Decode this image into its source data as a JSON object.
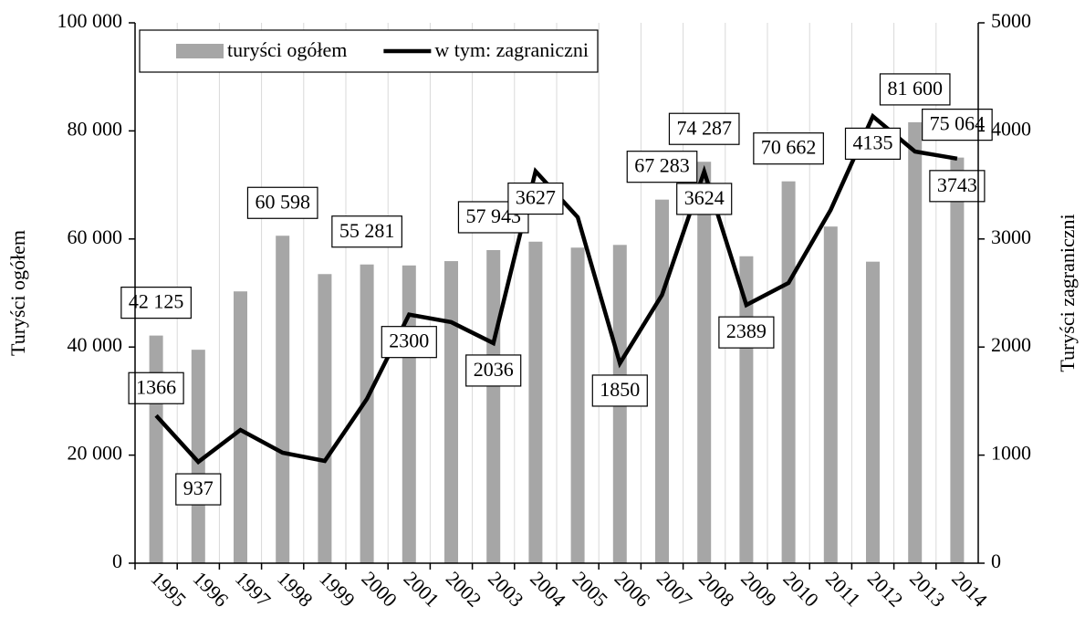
{
  "chart_data": {
    "type": "bar-line",
    "y_label": "Turyści ogółem",
    "y2_label": "Turyści zagraniczni",
    "categories": [
      "1995",
      "1996",
      "1997",
      "1998",
      "1999",
      "2000",
      "2001",
      "2002",
      "2003",
      "2004",
      "2005",
      "2006",
      "2007",
      "2008",
      "2009",
      "2010",
      "2011",
      "2012",
      "2013",
      "2014"
    ],
    "series": [
      {
        "name": "turyści ogółem",
        "type": "bar",
        "color": "#a6a6a6",
        "values": [
          42125,
          39500,
          50300,
          60598,
          53500,
          55281,
          55100,
          55900,
          57943,
          59500,
          58400,
          58900,
          67283,
          74287,
          56800,
          70662,
          62300,
          55800,
          81600,
          75064
        ],
        "value_labels": [
          "42 125",
          null,
          null,
          "60 598",
          null,
          "55 281",
          null,
          null,
          "57 943",
          null,
          null,
          null,
          "67 283",
          "74 287",
          null,
          "70 662",
          null,
          null,
          "81 600",
          "75 064"
        ]
      },
      {
        "name": "w tym: zagraniczni",
        "type": "line",
        "axis": "y2",
        "color": "#000000",
        "values": [
          1366,
          937,
          1233,
          1022,
          946,
          1520,
          2300,
          2230,
          2036,
          3627,
          3201,
          1850,
          2483,
          3624,
          2389,
          2593,
          3269,
          4135,
          3809,
          3743
        ],
        "value_labels": [
          "1366",
          "937",
          null,
          null,
          null,
          null,
          "2300",
          null,
          "2036",
          "3627",
          null,
          "1850",
          null,
          "3624",
          "2389",
          null,
          null,
          "4135",
          null,
          "3743"
        ]
      }
    ],
    "ylim": [
      0,
      100000
    ],
    "yticks": [
      {
        "value": 0,
        "label": "0"
      },
      {
        "value": 20000,
        "label": "20 000"
      },
      {
        "value": 40000,
        "label": "40 000"
      },
      {
        "value": 60000,
        "label": "60 000"
      },
      {
        "value": 80000,
        "label": "80 000"
      },
      {
        "value": 100000,
        "label": "100 000"
      }
    ],
    "y2lim": [
      0,
      5000
    ],
    "y2ticks": [
      0,
      1000,
      2000,
      3000,
      4000,
      5000
    ],
    "grid": "vertical",
    "legend": "top-left"
  }
}
